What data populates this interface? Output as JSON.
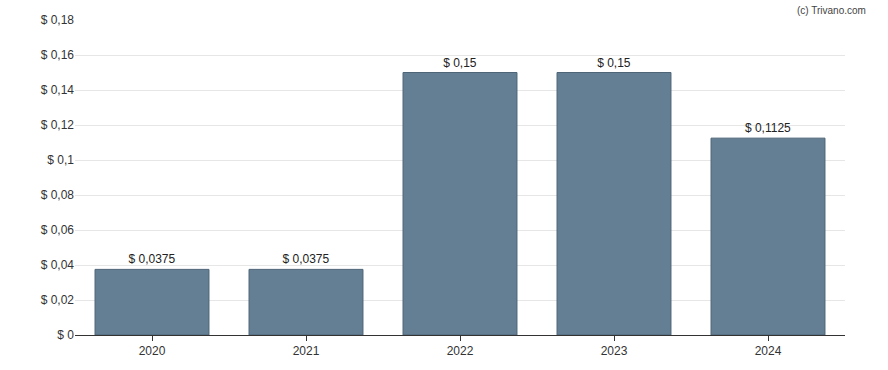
{
  "chart_data": {
    "type": "bar",
    "categories": [
      "2020",
      "2021",
      "2022",
      "2023",
      "2024"
    ],
    "values": [
      0.0375,
      0.0375,
      0.15,
      0.15,
      0.1125
    ],
    "value_labels": [
      "$ 0,0375",
      "$ 0,0375",
      "$ 0,15",
      "$ 0,15",
      "$ 0,1125"
    ],
    "data_labels": true,
    "color": "#647f94",
    "ylim": [
      0,
      0.18
    ],
    "yticks": [
      {
        "value": 0,
        "label": "$ 0"
      },
      {
        "value": 0.02,
        "label": "$ 0,02"
      },
      {
        "value": 0.04,
        "label": "$ 0,04"
      },
      {
        "value": 0.06,
        "label": "$ 0,06"
      },
      {
        "value": 0.08,
        "label": "$ 0,08"
      },
      {
        "value": 0.1,
        "label": "$ 0,1"
      },
      {
        "value": 0.12,
        "label": "$ 0,12"
      },
      {
        "value": 0.14,
        "label": "$ 0,14"
      },
      {
        "value": 0.16,
        "label": "$ 0,16"
      },
      {
        "value": 0.18,
        "label": "$ 0,18"
      }
    ],
    "grid": true,
    "annotations": [
      "(c) Trivano.com"
    ]
  }
}
